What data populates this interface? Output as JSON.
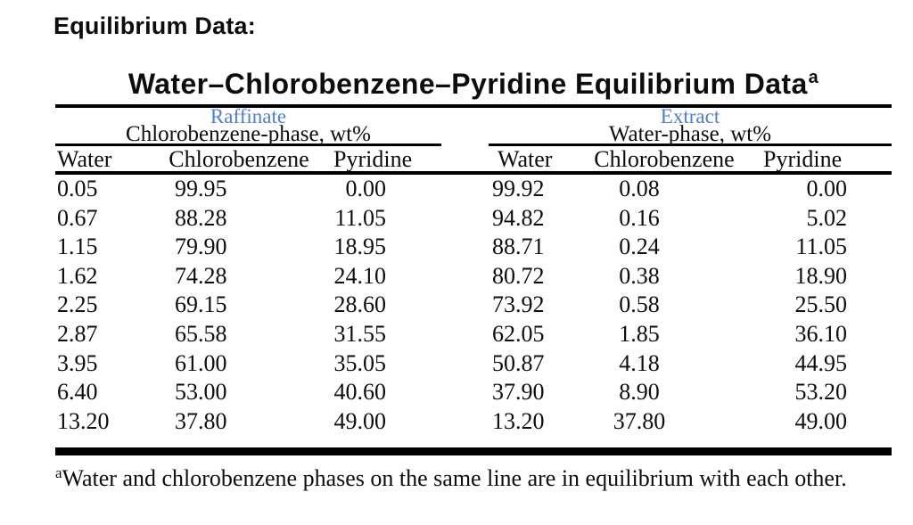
{
  "page": {
    "heading": "Equilibrium Data:"
  },
  "table": {
    "title": "Water–Chlorobenzene–Pyridine Equilibrium Data",
    "title_footnote_marker": "a",
    "groups": [
      {
        "stream_label": "Raffinate",
        "phase_subtitle": "Chlorobenzene-phase, wt%",
        "columns": [
          "Water",
          "Chlorobenzene",
          "Pyridine"
        ]
      },
      {
        "stream_label": "Extract",
        "phase_subtitle": "Water-phase, wt%",
        "columns": [
          "Water",
          "Chlorobenzene",
          "Pyridine"
        ]
      }
    ],
    "rows": [
      {
        "raffinate": [
          "0.05",
          "99.95",
          "0.00"
        ],
        "extract": [
          "99.92",
          "0.08",
          "0.00"
        ]
      },
      {
        "raffinate": [
          "0.67",
          "88.28",
          "11.05"
        ],
        "extract": [
          "94.82",
          "0.16",
          "5.02"
        ]
      },
      {
        "raffinate": [
          "1.15",
          "79.90",
          "18.95"
        ],
        "extract": [
          "88.71",
          "0.24",
          "11.05"
        ]
      },
      {
        "raffinate": [
          "1.62",
          "74.28",
          "24.10"
        ],
        "extract": [
          "80.72",
          "0.38",
          "18.90"
        ]
      },
      {
        "raffinate": [
          "2.25",
          "69.15",
          "28.60"
        ],
        "extract": [
          "73.92",
          "0.58",
          "25.50"
        ]
      },
      {
        "raffinate": [
          "2.87",
          "65.58",
          "31.55"
        ],
        "extract": [
          "62.05",
          "1.85",
          "36.10"
        ]
      },
      {
        "raffinate": [
          "3.95",
          "61.00",
          "35.05"
        ],
        "extract": [
          "50.87",
          "4.18",
          "44.95"
        ]
      },
      {
        "raffinate": [
          "6.40",
          "53.00",
          "40.60"
        ],
        "extract": [
          "37.90",
          "8.90",
          "53.20"
        ]
      },
      {
        "raffinate": [
          "13.20",
          "37.80",
          "49.00"
        ],
        "extract": [
          "13.20",
          "37.80",
          "49.00"
        ]
      }
    ],
    "footnote": {
      "marker": "a",
      "text": "Water and chlorobenzene phases on the same line are in equilibrium with each other."
    }
  },
  "colors": {
    "accent_blue": "#4a7de0",
    "ink": "#0d0d0d"
  },
  "chart_data": {
    "type": "table",
    "title": "Water–Chlorobenzene–Pyridine Equilibrium Data",
    "column_groups": [
      "Raffinate — Chlorobenzene-phase, wt%",
      "Extract — Water-phase, wt%"
    ],
    "columns": [
      "Raffinate Water",
      "Raffinate Chlorobenzene",
      "Raffinate Pyridine",
      "Extract Water",
      "Extract Chlorobenzene",
      "Extract Pyridine"
    ],
    "rows": [
      [
        0.05,
        99.95,
        0.0,
        99.92,
        0.08,
        0.0
      ],
      [
        0.67,
        88.28,
        11.05,
        94.82,
        0.16,
        5.02
      ],
      [
        1.15,
        79.9,
        18.95,
        88.71,
        0.24,
        11.05
      ],
      [
        1.62,
        74.28,
        24.1,
        80.72,
        0.38,
        18.9
      ],
      [
        2.25,
        69.15,
        28.6,
        73.92,
        0.58,
        25.5
      ],
      [
        2.87,
        65.58,
        31.55,
        62.05,
        1.85,
        36.1
      ],
      [
        3.95,
        61.0,
        35.05,
        50.87,
        4.18,
        44.95
      ],
      [
        6.4,
        53.0,
        40.6,
        37.9,
        8.9,
        53.2
      ],
      [
        13.2,
        37.8,
        49.0,
        13.2,
        37.8,
        49.0
      ]
    ],
    "footnote": "a: Water and chlorobenzene phases on the same line are in equilibrium with each other."
  }
}
